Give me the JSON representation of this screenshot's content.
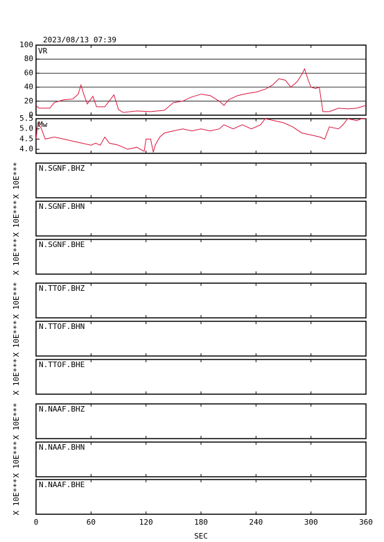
{
  "title": "2023/08/13 07:39",
  "xlabel": "SEC",
  "xlim": [
    0,
    360
  ],
  "xticks": [
    0,
    60,
    120,
    180,
    240,
    300,
    360
  ],
  "chart_data": [
    {
      "type": "line",
      "label": "VR",
      "color": "#dc143c",
      "ylim": [
        0,
        100
      ],
      "yticks": [
        0,
        20,
        40,
        60,
        80,
        100
      ],
      "grid": true,
      "x": [
        0,
        3,
        15,
        20,
        30,
        40,
        46,
        49,
        52,
        56,
        62,
        66,
        75,
        85,
        90,
        95,
        110,
        125,
        140,
        150,
        160,
        170,
        180,
        190,
        200,
        205,
        210,
        220,
        230,
        240,
        250,
        258,
        265,
        272,
        278,
        285,
        290,
        293,
        297,
        300,
        305,
        309,
        313,
        320,
        330,
        340,
        350,
        360
      ],
      "values": [
        14,
        10,
        10,
        18,
        22,
        23,
        30,
        43,
        30,
        16,
        27,
        12,
        12,
        29,
        8,
        4,
        6,
        5,
        7,
        18,
        20,
        26,
        30,
        28,
        20,
        14,
        22,
        28,
        31,
        33,
        37,
        43,
        52,
        50,
        40,
        48,
        58,
        66,
        50,
        40,
        38,
        40,
        5,
        5,
        10,
        9,
        10,
        14
      ]
    },
    {
      "type": "line",
      "label": "Mw",
      "color": "#dc143c",
      "ylim": [
        3.8,
        5.5
      ],
      "yticks": [
        {
          "value": 4,
          "label": "4.0"
        },
        {
          "value": 4.5,
          "label": "4.5"
        },
        {
          "value": 5,
          "label": "5.0"
        },
        {
          "value": 5.5,
          "label": "5.5"
        }
      ],
      "grid": false,
      "x": [
        0,
        2,
        6,
        10,
        20,
        30,
        40,
        50,
        60,
        65,
        70,
        75,
        80,
        90,
        100,
        110,
        118,
        120,
        125,
        128,
        130,
        135,
        140,
        150,
        160,
        170,
        180,
        190,
        200,
        205,
        215,
        225,
        235,
        245,
        250,
        260,
        270,
        280,
        290,
        300,
        310,
        315,
        320,
        330,
        335,
        340,
        350,
        355,
        360
      ],
      "values": [
        4.5,
        5.3,
        5.0,
        4.5,
        4.6,
        4.5,
        4.4,
        4.3,
        4.2,
        4.3,
        4.2,
        4.6,
        4.3,
        4.2,
        4.0,
        4.1,
        3.9,
        4.5,
        4.5,
        3.85,
        4.2,
        4.6,
        4.8,
        4.9,
        5.0,
        4.9,
        5.0,
        4.9,
        5.0,
        5.2,
        5.0,
        5.2,
        5.0,
        5.2,
        5.5,
        5.4,
        5.3,
        5.1,
        4.8,
        4.7,
        4.6,
        4.5,
        5.1,
        5.0,
        5.2,
        5.5,
        5.4,
        5.5,
        5.5
      ]
    },
    {
      "type": "waveform",
      "label": "N.SGNF.BHZ",
      "ylabel": "X 10E***"
    },
    {
      "type": "waveform",
      "label": "N.SGNF.BHN",
      "ylabel": "X 10E***"
    },
    {
      "type": "waveform",
      "label": "N.SGNF.BHE",
      "ylabel": "X 10E***"
    },
    {
      "type": "waveform",
      "label": "N.TTOF.BHZ",
      "ylabel": "X 10E***"
    },
    {
      "type": "waveform",
      "label": "N.TTOF.BHN",
      "ylabel": "X 10E***"
    },
    {
      "type": "waveform",
      "label": "N.TTOF.BHE",
      "ylabel": "X 10E***"
    },
    {
      "type": "waveform",
      "label": "N.NAAF.BHZ",
      "ylabel": "X 10E***"
    },
    {
      "type": "waveform",
      "label": "N.NAAF.BHN",
      "ylabel": "X 10E***"
    },
    {
      "type": "waveform",
      "label": "N.NAAF.BHE",
      "ylabel": "X 10E***"
    }
  ]
}
